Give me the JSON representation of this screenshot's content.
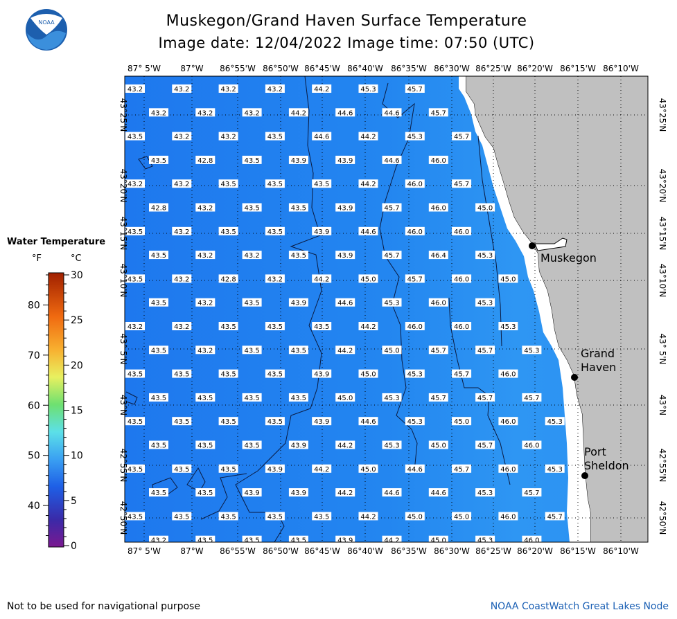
{
  "header": {
    "title": "Muskegon/Grand Haven Surface Temperature",
    "subtitle": "Image date: 12/04/2022     Image time: 07:50 (UTC)"
  },
  "logo": {
    "text": "NOAA",
    "icon": "noaa-logo-icon"
  },
  "map": {
    "lon_labels": [
      "87° 5'W",
      "87°W",
      "86°55'W",
      "86°50'W",
      "86°45'W",
      "86°40'W",
      "86°35'W",
      "86°30'W",
      "86°25'W",
      "86°20'W",
      "86°15'W",
      "86°10'W"
    ],
    "lat_labels": [
      "43°25'N",
      "43°20'N",
      "43°15'N",
      "43°10'N",
      "43° 5'N",
      "43°N",
      "42°55'N",
      "42°50'N"
    ],
    "places": [
      {
        "name": "Muskegon",
        "lines": [
          "Muskegon"
        ]
      },
      {
        "name": "Grand Haven",
        "lines": [
          "Grand",
          "Haven"
        ]
      },
      {
        "name": "Port Sheldon",
        "lines": [
          "Port",
          "Sheldon"
        ]
      }
    ],
    "rows": [
      [
        "43.2",
        "43.2",
        "43.2",
        "43.2",
        "44.2",
        "45.3",
        "45.7"
      ],
      [
        "43.2",
        "43.2",
        "43.2",
        "44.2",
        "44.6",
        "44.6",
        "45.7"
      ],
      [
        "43.5",
        "43.2",
        "43.2",
        "43.5",
        "44.6",
        "44.2",
        "45.3",
        "45.7"
      ],
      [
        "43.5",
        "42.8",
        "43.5",
        "43.9",
        "43.9",
        "44.6",
        "46.0"
      ],
      [
        "43.2",
        "43.2",
        "43.5",
        "43.5",
        "43.5",
        "44.2",
        "46.0",
        "45.7"
      ],
      [
        "42.8",
        "43.2",
        "43.5",
        "43.5",
        "43.9",
        "45.7",
        "46.0",
        "45.0"
      ],
      [
        "43.5",
        "43.2",
        "43.5",
        "43.5",
        "43.9",
        "44.6",
        "46.0",
        "46.0"
      ],
      [
        "43.5",
        "43.2",
        "43.2",
        "43.5",
        "43.9",
        "45.7",
        "46.4",
        "45.3"
      ],
      [
        "43.5",
        "43.2",
        "42.8",
        "43.2",
        "44.2",
        "45.0",
        "45.7",
        "46.0",
        "45.0"
      ],
      [
        "43.5",
        "43.2",
        "43.5",
        "43.9",
        "44.6",
        "45.3",
        "46.0",
        "45.3"
      ],
      [
        "43.2",
        "43.2",
        "43.5",
        "43.5",
        "43.5",
        "44.2",
        "46.0",
        "46.0",
        "45.3"
      ],
      [
        "43.5",
        "43.2",
        "43.5",
        "43.5",
        "44.2",
        "45.0",
        "45.7",
        "45.7",
        "45.3"
      ],
      [
        "43.5",
        "43.5",
        "43.5",
        "43.5",
        "43.9",
        "45.0",
        "45.3",
        "45.7",
        "46.0"
      ],
      [
        "43.5",
        "43.5",
        "43.5",
        "43.5",
        "45.0",
        "45.3",
        "45.7",
        "45.7",
        "45.7"
      ],
      [
        "43.5",
        "43.5",
        "43.5",
        "43.5",
        "43.9",
        "44.6",
        "45.3",
        "45.0",
        "46.0",
        "45.3"
      ],
      [
        "43.5",
        "43.5",
        "43.5",
        "43.9",
        "44.2",
        "45.3",
        "45.0",
        "45.7",
        "46.0"
      ],
      [
        "43.5",
        "43.5",
        "43.5",
        "43.9",
        "44.2",
        "45.0",
        "44.6",
        "45.7",
        "46.0",
        "45.3"
      ],
      [
        "43.5",
        "43.5",
        "43.9",
        "43.9",
        "44.2",
        "44.6",
        "44.6",
        "45.3",
        "45.7"
      ],
      [
        "43.5",
        "43.5",
        "43.5",
        "43.5",
        "43.5",
        "44.2",
        "45.0",
        "45.0",
        "46.0",
        "45.7"
      ],
      [
        "43.2",
        "43.5",
        "43.5",
        "43.5",
        "43.9",
        "44.2",
        "45.0",
        "45.3",
        "46.0"
      ]
    ]
  },
  "legend": {
    "title": "Water Temperature",
    "unit_f": "°F",
    "unit_c": "°C",
    "f_ticks": [
      "80",
      "70",
      "60",
      "50",
      "40"
    ],
    "c_ticks": [
      "30",
      "25",
      "20",
      "15",
      "10",
      "5",
      "0"
    ]
  },
  "footer": {
    "left": "Not to be used for navigational purpose",
    "right": "NOAA CoastWatch Great Lakes Node"
  },
  "colors": {
    "water": "#1f7fef",
    "water_warm": "#2f95f2",
    "land": "#c0c0c0"
  }
}
